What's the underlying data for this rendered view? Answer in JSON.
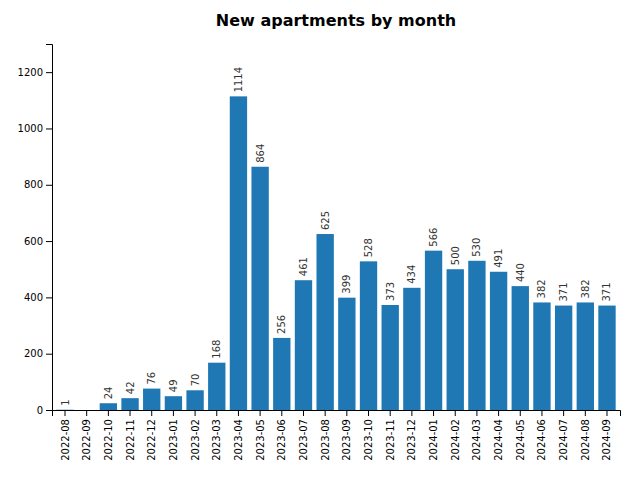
{
  "chart_data": {
    "type": "bar",
    "title": "New apartments by month",
    "categories": [
      "2022-08",
      "2022-09",
      "2022-10",
      "2022-11",
      "2022-12",
      "2023-01",
      "2023-02",
      "2023-03",
      "2023-04",
      "2023-05",
      "2023-06",
      "2023-07",
      "2023-08",
      "2023-09",
      "2023-10",
      "2023-11",
      "2023-12",
      "2024-01",
      "2024-02",
      "2024-03",
      "2024-04",
      "2024-05",
      "2024-06",
      "2024-07",
      "2024-08",
      "2024-09"
    ],
    "values": [
      1,
      0,
      24,
      42,
      76,
      49,
      70,
      168,
      1114,
      864,
      256,
      461,
      625,
      399,
      528,
      373,
      434,
      566,
      500,
      530,
      491,
      440,
      382,
      371,
      382,
      371
    ],
    "value_labels": [
      "1",
      null,
      "24",
      "42",
      "76",
      "49",
      "70",
      "168",
      "1114",
      "864",
      "256",
      "461",
      "625",
      "399",
      "528",
      "373",
      "434",
      "566",
      "500",
      "530",
      "491",
      "440",
      "382",
      "371",
      "382",
      "371"
    ],
    "data_labels": true,
    "color": "#1f77b4",
    "ylim": [
      0,
      1300
    ],
    "yticks": [
      0,
      200,
      400,
      600,
      800,
      1000,
      1200
    ],
    "grid": false
  }
}
